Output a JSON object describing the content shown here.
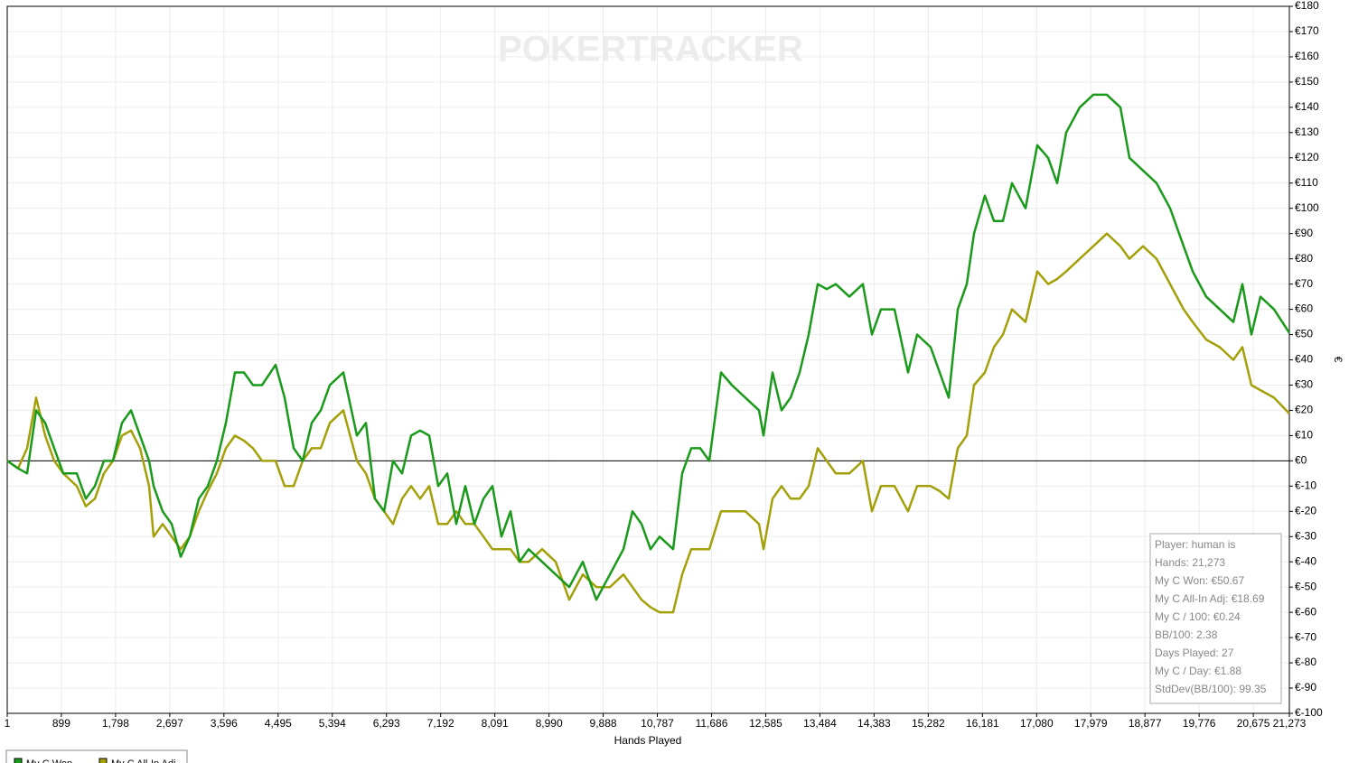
{
  "chart_data": {
    "type": "line",
    "watermark": "POKERTRACKER",
    "x_label": "Hands Played",
    "y_label": "€",
    "x": [
      1,
      181,
      331,
      481,
      631,
      781,
      930,
      1155,
      1305,
      1455,
      1605,
      1755,
      1905,
      2055,
      2205,
      2355,
      2430,
      2580,
      2729,
      2879,
      3029,
      3179,
      3329,
      3479,
      3629,
      3779,
      3929,
      4079,
      4228,
      4453,
      4603,
      4753,
      4903,
      5053,
      5203,
      5353,
      5578,
      5803,
      5953,
      6103,
      6253,
      6402,
      6552,
      6702,
      6852,
      7002,
      7152,
      7302,
      7452,
      7602,
      7752,
      7902,
      8051,
      8201,
      8351,
      8501,
      8651,
      8876,
      9101,
      9325,
      9550,
      9775,
      10000,
      10225,
      10375,
      10525,
      10675,
      10824,
      11049,
      11199,
      11349,
      11499,
      11649,
      11844,
      12024,
      12249,
      12473,
      12548,
      12698,
      12848,
      12998,
      13148,
      13298,
      13448,
      13598,
      13748,
      13972,
      14197,
      14347,
      14497,
      14722,
      14947,
      15097,
      15322,
      15471,
      15621,
      15771,
      15921,
      16041,
      16221,
      16371,
      16521,
      16671,
      16896,
      17091,
      17271,
      17420,
      17570,
      17795,
      18020,
      18245,
      18470,
      18620,
      18845,
      19070,
      19294,
      19519,
      19669,
      19894,
      20119,
      20344,
      20494,
      20644,
      20793,
      21018,
      21273
    ],
    "series": [
      {
        "name": "My C Won",
        "color": "#1a9a1a",
        "values": [
          0,
          -3,
          -5,
          20,
          15,
          5,
          -5,
          -5,
          -15,
          -10,
          0,
          0,
          15,
          20,
          10,
          0,
          -10,
          -20,
          -25,
          -38,
          -30,
          -15,
          -10,
          0,
          15,
          35,
          35,
          30,
          30,
          38,
          25,
          5,
          0,
          15,
          20,
          30,
          35,
          10,
          15,
          -15,
          -20,
          0,
          -5,
          10,
          12,
          10,
          -10,
          -5,
          -25,
          -10,
          -25,
          -15,
          -10,
          -30,
          -20,
          -40,
          -35,
          -40,
          -45,
          -50,
          -40,
          -55,
          -45,
          -35,
          -20,
          -25,
          -35,
          -30,
          -35,
          -5,
          5,
          5,
          0,
          35,
          30,
          25,
          20,
          10,
          35,
          20,
          25,
          35,
          50,
          70,
          68,
          70,
          65,
          70,
          50,
          60,
          60,
          35,
          50,
          45,
          35,
          25,
          60,
          70,
          90,
          105,
          95,
          95,
          110,
          100,
          125,
          120,
          110,
          130,
          140,
          145,
          145,
          140,
          120,
          115,
          110,
          100,
          85,
          75,
          65,
          60,
          55,
          70,
          50,
          65,
          60,
          50.67
        ]
      },
      {
        "name": "My C All-In Adj",
        "color": "#a3a00a",
        "values": [
          0,
          -3,
          5,
          25,
          10,
          0,
          -5,
          -10,
          -18,
          -15,
          -5,
          0,
          10,
          12,
          5,
          -10,
          -30,
          -25,
          -30,
          -35,
          -30,
          -20,
          -12,
          -5,
          5,
          10,
          8,
          5,
          0,
          0,
          -10,
          -10,
          0,
          5,
          5,
          15,
          20,
          0,
          -5,
          -15,
          -20,
          -25,
          -15,
          -10,
          -15,
          -10,
          -25,
          -25,
          -20,
          -25,
          -25,
          -30,
          -35,
          -35,
          -35,
          -40,
          -40,
          -35,
          -40,
          -55,
          -45,
          -50,
          -50,
          -45,
          -50,
          -55,
          -58,
          -60,
          -60,
          -45,
          -35,
          -35,
          -35,
          -20,
          -20,
          -20,
          -25,
          -35,
          -15,
          -10,
          -15,
          -15,
          -10,
          5,
          0,
          -5,
          -5,
          0,
          -20,
          -10,
          -10,
          -20,
          -10,
          -10,
          -12,
          -15,
          5,
          10,
          30,
          35,
          45,
          50,
          60,
          55,
          75,
          70,
          72,
          75,
          80,
          85,
          90,
          85,
          80,
          85,
          80,
          70,
          60,
          55,
          48,
          45,
          40,
          45,
          30,
          28,
          25,
          18.69
        ]
      }
    ],
    "xlim": [
      1,
      21273
    ],
    "xticks": [
      1,
      899,
      {
        "value": 1798,
        "label": "1,798"
      },
      {
        "value": 2697,
        "label": "2,697"
      },
      {
        "value": 3596,
        "label": "3,596"
      },
      {
        "value": 4495,
        "label": "4,495"
      },
      {
        "value": 5394,
        "label": "5,394"
      },
      {
        "value": 6293,
        "label": "6,293"
      },
      {
        "value": 7192,
        "label": "7,192"
      },
      {
        "value": 8091,
        "label": "8,091"
      },
      {
        "value": 8990,
        "label": "8,990"
      },
      {
        "value": 9888,
        "label": "9,888"
      },
      {
        "value": 10787,
        "label": "10,787"
      },
      {
        "value": 11686,
        "label": "11,686"
      },
      {
        "value": 12585,
        "label": "12,585"
      },
      {
        "value": 13484,
        "label": "13,484"
      },
      {
        "value": 14383,
        "label": "14,383"
      },
      {
        "value": 15282,
        "label": "15,282"
      },
      {
        "value": 16181,
        "label": "16,181"
      },
      {
        "value": 17080,
        "label": "17,080"
      },
      {
        "value": 17979,
        "label": "17,979"
      },
      {
        "value": 18877,
        "label": "18,877"
      },
      {
        "value": 19776,
        "label": "19,776"
      },
      {
        "value": 20675,
        "label": "20,675"
      },
      {
        "value": 21273,
        "label": "21,273"
      }
    ],
    "ylim": [
      -100,
      180
    ],
    "yticks": [
      {
        "value": 180,
        "label": "€180"
      },
      {
        "value": 170,
        "label": "€170"
      },
      {
        "value": 160,
        "label": "€160"
      },
      {
        "value": 150,
        "label": "€150"
      },
      {
        "value": 140,
        "label": "€140"
      },
      {
        "value": 130,
        "label": "€130"
      },
      {
        "value": 120,
        "label": "€120"
      },
      {
        "value": 110,
        "label": "€110"
      },
      {
        "value": 100,
        "label": "€100"
      },
      {
        "value": 90,
        "label": "€90"
      },
      {
        "value": 80,
        "label": "€80"
      },
      {
        "value": 70,
        "label": "€70"
      },
      {
        "value": 60,
        "label": "€60"
      },
      {
        "value": 50,
        "label": "€50"
      },
      {
        "value": 40,
        "label": "€40"
      },
      {
        "value": 30,
        "label": "€30"
      },
      {
        "value": 20,
        "label": "€20"
      },
      {
        "value": 10,
        "label": "€10"
      },
      {
        "value": 0,
        "label": "€0"
      },
      {
        "value": -10,
        "label": "€-10"
      },
      {
        "value": -20,
        "label": "€-20"
      },
      {
        "value": -30,
        "label": "€-30"
      },
      {
        "value": -40,
        "label": "€-40"
      },
      {
        "value": -50,
        "label": "€-50"
      },
      {
        "value": -60,
        "label": "€-60"
      },
      {
        "value": -70,
        "label": "€-70"
      },
      {
        "value": -80,
        "label": "€-80"
      },
      {
        "value": -90,
        "label": "€-90"
      },
      {
        "value": -100,
        "label": "€-100"
      }
    ],
    "grid": true,
    "stats": [
      "Player: human is",
      "Hands: 21,273",
      "My C Won: €50.67",
      "My C All-In Adj: €18.69",
      "My C / 100: €0.24",
      "BB/100: 2.38",
      "Days Played: 27",
      "My C / Day: €1.88",
      "StdDev(BB/100): 99.35"
    ]
  }
}
